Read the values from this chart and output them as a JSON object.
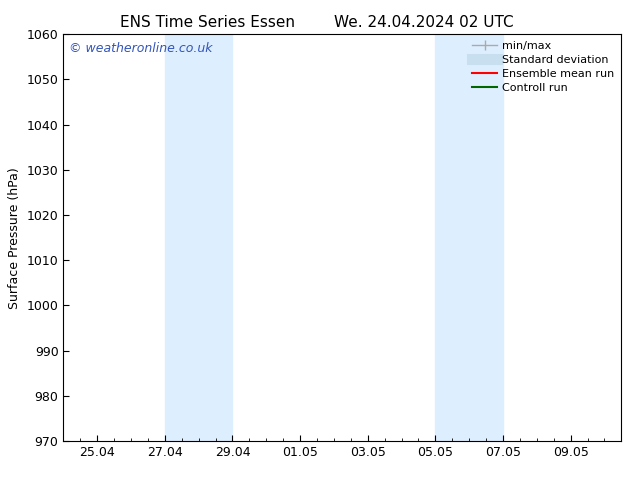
{
  "title_left": "ENS Time Series Essen",
  "title_right": "We. 24.04.2024 02 UTC",
  "ylabel": "Surface Pressure (hPa)",
  "ylim": [
    970,
    1060
  ],
  "yticks": [
    970,
    980,
    990,
    1000,
    1010,
    1020,
    1030,
    1040,
    1050,
    1060
  ],
  "xtick_labels": [
    "25.04",
    "27.04",
    "29.04",
    "01.05",
    "03.05",
    "05.05",
    "07.05",
    "09.05"
  ],
  "xtick_positions": [
    1,
    3,
    5,
    7,
    9,
    11,
    13,
    15
  ],
  "x_min": 0.0,
  "x_max": 16.5,
  "shaded_bands": [
    {
      "x_start": 3,
      "x_end": 5
    },
    {
      "x_start": 11,
      "x_end": 13
    }
  ],
  "shaded_color": "#ddeeff",
  "background_color": "#ffffff",
  "watermark_text": "© weatheronline.co.uk",
  "watermark_color": "#3355bb",
  "legend_items": [
    {
      "label": "min/max",
      "color": "#aaaaaa",
      "lw": 1.0,
      "style": "minmax"
    },
    {
      "label": "Standard deviation",
      "color": "#c8dff0",
      "lw": 8,
      "style": "thick"
    },
    {
      "label": "Ensemble mean run",
      "color": "#ff0000",
      "lw": 1.5,
      "style": "line"
    },
    {
      "label": "Controll run",
      "color": "#006600",
      "lw": 1.5,
      "style": "line"
    }
  ],
  "title_fontsize": 11,
  "label_fontsize": 9,
  "tick_fontsize": 9,
  "legend_fontsize": 8,
  "watermark_fontsize": 9
}
